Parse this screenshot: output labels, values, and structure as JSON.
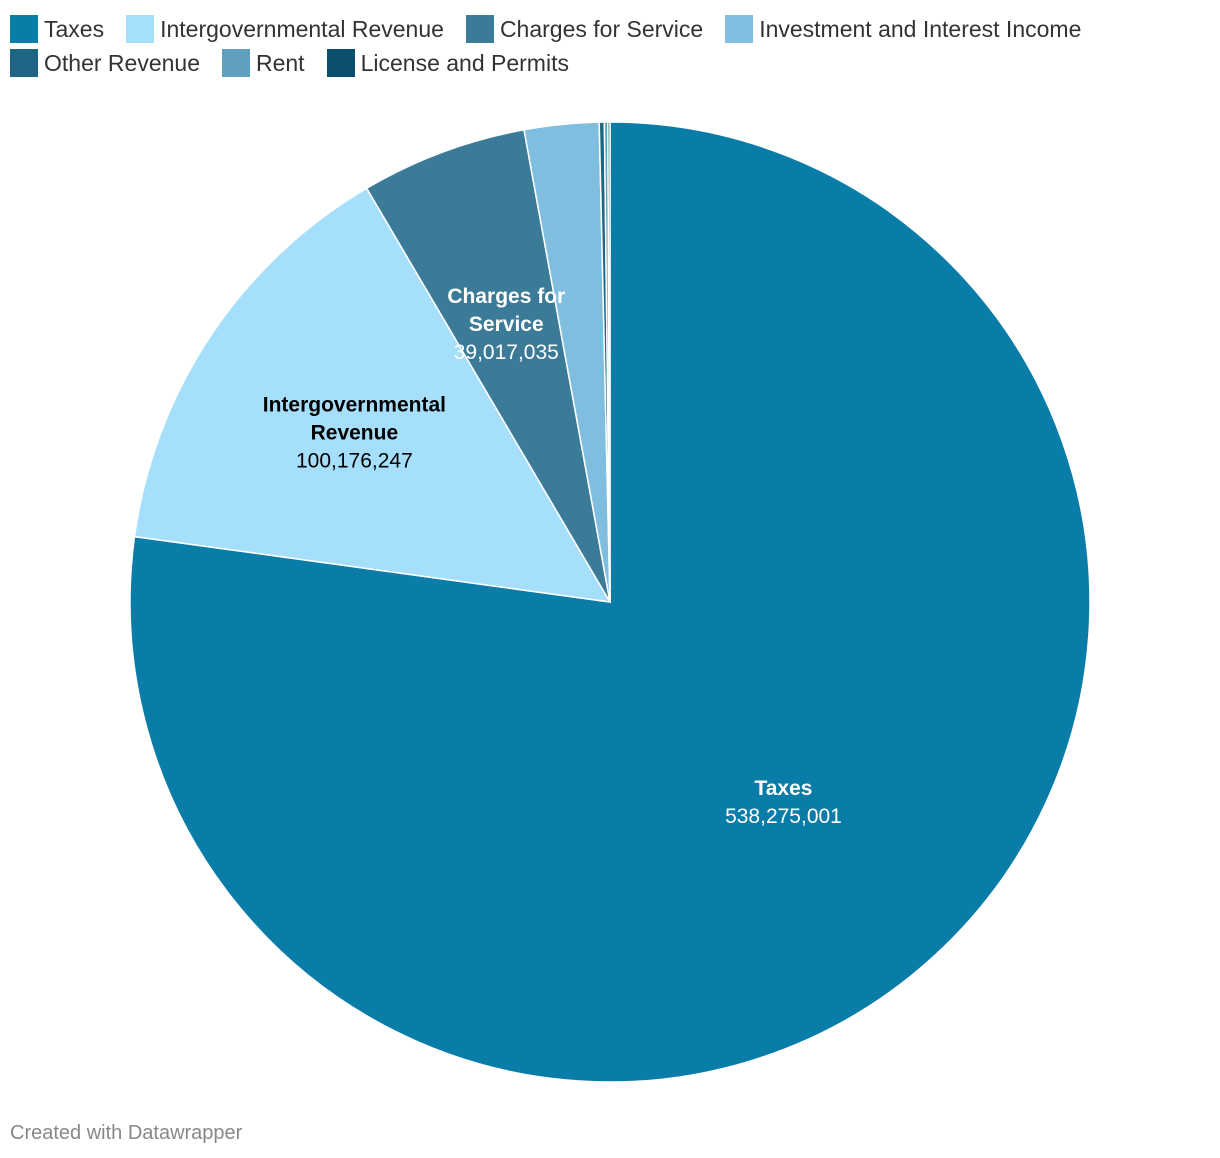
{
  "chart_data": {
    "type": "pie",
    "title": "",
    "slices": [
      {
        "name": "Taxes",
        "value": 538275001,
        "value_label": "538,275,001",
        "color": "#0a7ca8",
        "label_color": "#ffffff",
        "show_label": true
      },
      {
        "name": "Intergovernmental Revenue",
        "value": 100176247,
        "value_label": "100,176,247",
        "color": "#a5dffb",
        "label_color": "#000000",
        "show_label": true
      },
      {
        "name": "Charges for Service",
        "value": 39017035,
        "value_label": "39,017,035",
        "color": "#3c7b98",
        "label_color": "#ffffff",
        "show_label": true
      },
      {
        "name": "Investment and Interest Income",
        "value": 17500000,
        "value_label": "",
        "color": "#7fbede",
        "label_color": "#ffffff",
        "show_label": false
      },
      {
        "name": "Other Revenue",
        "value": 1200000,
        "value_label": "",
        "color": "#1f6685",
        "label_color": "#ffffff",
        "show_label": false
      },
      {
        "name": "Rent",
        "value": 800000,
        "value_label": "",
        "color": "#5d9fbd",
        "label_color": "#ffffff",
        "show_label": false
      },
      {
        "name": "License and Permits",
        "value": 500000,
        "value_label": "",
        "color": "#0b4f6c",
        "label_color": "#ffffff",
        "show_label": false
      }
    ],
    "legend_position": "top-left"
  },
  "footer": {
    "credit": "Created with Datawrapper"
  }
}
